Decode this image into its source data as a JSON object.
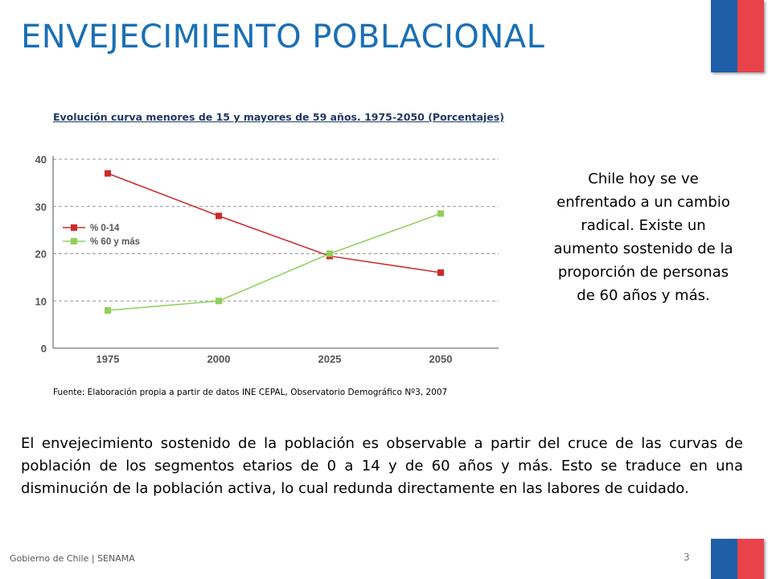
{
  "header": {
    "title": "ENVEJECIMIENTO POBLACIONAL"
  },
  "colors": {
    "title_blue": "#1a6fb5",
    "flag_blue": "#1f5fa8",
    "flag_red": "#e8434a",
    "series_0_14": "#cc2a2a",
    "series_60": "#8fcf5a"
  },
  "chart_data": {
    "type": "line",
    "title": "Evolución curva menores de 15 y mayores de 59 años. 1975-2050 (Porcentajes)",
    "categories": [
      "1975",
      "2000",
      "2025",
      "2050"
    ],
    "series": [
      {
        "name": "% 0-14",
        "values": [
          37,
          28,
          19.5,
          16
        ]
      },
      {
        "name": "% 60 y más",
        "values": [
          8,
          10,
          20,
          28.5
        ]
      }
    ],
    "yticks": [
      "0",
      "10",
      "20",
      "30",
      "40"
    ],
    "ylim": [
      0,
      40
    ],
    "grid": true,
    "legend_position": "left-middle",
    "source": "Fuente: Elaboración propia a partir de datos INE CEPAL, Observatorio Demográfico Nº3, 2007"
  },
  "side_text": "Chile hoy se ve enfrentado a un cambio radical. Existe un aumento sostenido de la proporción de personas de 60 años y más.",
  "body_text": "El envejecimiento sostenido de la población es observable a partir del cruce de las curvas de población de los segmentos etarios de 0 a 14 y de 60 años y más. Esto se traduce en una disminución de la población activa, lo cual redunda directamente en las labores de cuidado.",
  "footer": {
    "org": "Gobierno de Chile | SENAMA",
    "page": "3"
  }
}
